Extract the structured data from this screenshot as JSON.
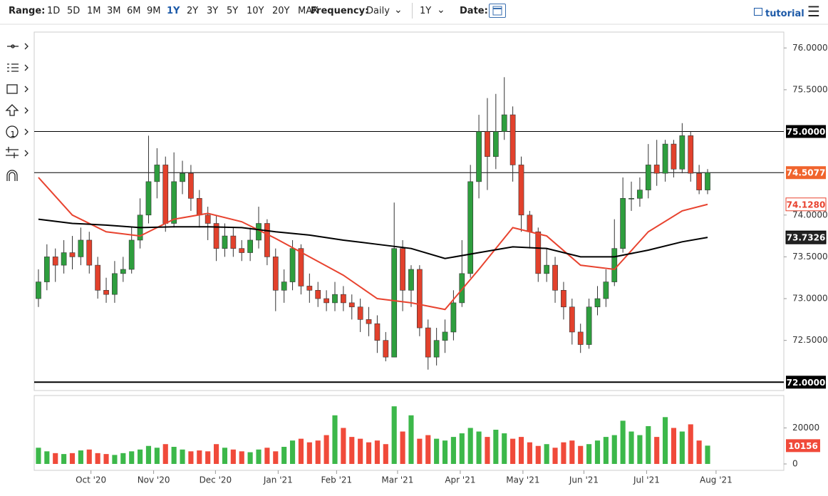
{
  "toolbar": {
    "range_label": "Range:",
    "ranges": [
      "1D",
      "5D",
      "1M",
      "3M",
      "6M",
      "9M",
      "1Y",
      "2Y",
      "3Y",
      "5Y",
      "10Y",
      "20Y",
      "MAX"
    ],
    "active_range": 6,
    "frequency_label": "Frequency:",
    "frequency": "Daily",
    "period": "1Y",
    "date_label": "Date:",
    "tutorial": "tutorial"
  },
  "chart_data": {
    "type": "candlestick",
    "xlim": [
      -0.5,
      88
    ],
    "xticks": [
      {
        "value": 6.2,
        "label": "Oct '20"
      },
      {
        "value": 13.6,
        "label": "Nov '20"
      },
      {
        "value": 20.9,
        "label": "Dec '20"
      },
      {
        "value": 28.3,
        "label": "Jan '21"
      },
      {
        "value": 35.2,
        "label": "Feb '21"
      },
      {
        "value": 42.4,
        "label": "Mar '21"
      },
      {
        "value": 49.8,
        "label": "Apr '21"
      },
      {
        "value": 57.2,
        "label": "May '21"
      },
      {
        "value": 64.4,
        "label": "Jun '21"
      },
      {
        "value": 71.8,
        "label": "Jul '21"
      },
      {
        "value": 80.0,
        "label": "Aug '21"
      }
    ],
    "ylim": [
      71.9,
      76.19
    ],
    "yticks": [
      {
        "value": 72.5,
        "label": "72.5000"
      },
      {
        "value": 73,
        "label": "73.0000"
      },
      {
        "value": 73.5,
        "label": "73.5000"
      },
      {
        "value": 74,
        "label": "74.0000"
      },
      {
        "value": 75.5,
        "label": "75.5000"
      },
      {
        "value": 76,
        "label": "76.0000"
      }
    ],
    "up_color": "#2e9e3e",
    "down_color": "#e2412c",
    "open": [
      73.0,
      73.2,
      73.5,
      73.4,
      73.55,
      73.5,
      73.7,
      73.4,
      73.1,
      73.05,
      73.3,
      73.35,
      73.7,
      74.0,
      74.4,
      74.6,
      73.9,
      74.4,
      74.5,
      74.2,
      74.0,
      73.9,
      73.6,
      73.75,
      73.6,
      73.55,
      73.7,
      73.9,
      73.5,
      73.1,
      73.2,
      73.6,
      73.15,
      73.1,
      73.0,
      72.95,
      73.05,
      72.95,
      72.9,
      72.75,
      72.7,
      72.5,
      72.3,
      73.6,
      73.1,
      73.35,
      72.65,
      72.3,
      72.5,
      72.6,
      72.95,
      73.3,
      74.4,
      75.0,
      74.7,
      75.0,
      75.2,
      74.6,
      74.0,
      73.8,
      73.3,
      73.4,
      73.1,
      72.9,
      72.6,
      72.45,
      72.9,
      73.0,
      73.2,
      73.6,
      74.2,
      74.2,
      74.3,
      74.6,
      74.5,
      74.85,
      74.55,
      74.95,
      74.5,
      74.3
    ],
    "high": [
      73.35,
      73.65,
      73.6,
      73.7,
      73.75,
      73.85,
      73.8,
      73.5,
      73.25,
      73.45,
      73.5,
      73.85,
      74.2,
      74.95,
      74.8,
      74.7,
      74.75,
      74.65,
      74.6,
      74.3,
      74.1,
      74.0,
      73.9,
      73.85,
      73.7,
      73.85,
      74.1,
      73.95,
      73.6,
      73.35,
      73.7,
      73.65,
      73.3,
      73.2,
      73.1,
      73.2,
      73.15,
      73.05,
      73.0,
      72.9,
      72.8,
      72.6,
      74.15,
      73.7,
      73.4,
      73.4,
      72.75,
      72.65,
      72.75,
      73.1,
      73.7,
      74.6,
      75.2,
      75.4,
      75.45,
      75.65,
      75.3,
      74.7,
      74.05,
      73.85,
      73.6,
      73.5,
      73.2,
      73.0,
      72.7,
      73.0,
      73.15,
      73.35,
      73.95,
      74.45,
      74.4,
      74.45,
      74.85,
      74.9,
      74.9,
      74.9,
      75.1,
      75.0,
      74.6,
      74.55
    ],
    "low": [
      72.9,
      73.1,
      73.2,
      73.3,
      73.35,
      73.4,
      73.3,
      73.0,
      72.95,
      72.95,
      73.2,
      73.3,
      73.6,
      73.9,
      74.2,
      73.8,
      73.85,
      74.25,
      74.05,
      73.85,
      73.7,
      73.45,
      73.5,
      73.5,
      73.45,
      73.45,
      73.6,
      73.4,
      72.85,
      72.95,
      73.1,
      73.05,
      72.95,
      72.9,
      72.85,
      72.85,
      72.85,
      72.75,
      72.6,
      72.55,
      72.35,
      72.25,
      72.3,
      72.85,
      72.9,
      72.55,
      72.15,
      72.2,
      72.35,
      72.5,
      72.9,
      73.25,
      74.2,
      74.3,
      74.55,
      74.9,
      74.4,
      73.8,
      73.6,
      73.2,
      73.2,
      72.95,
      72.75,
      72.45,
      72.35,
      72.4,
      72.8,
      72.9,
      73.15,
      73.55,
      74.05,
      74.1,
      74.2,
      74.35,
      74.4,
      74.45,
      74.5,
      74.4,
      74.25,
      74.25
    ],
    "close": [
      73.2,
      73.5,
      73.4,
      73.55,
      73.5,
      73.7,
      73.4,
      73.1,
      73.05,
      73.3,
      73.35,
      73.7,
      74.0,
      74.4,
      74.6,
      73.9,
      74.4,
      74.5,
      74.2,
      74.0,
      73.9,
      73.6,
      73.75,
      73.6,
      73.55,
      73.7,
      73.9,
      73.5,
      73.1,
      73.2,
      73.6,
      73.15,
      73.1,
      73.0,
      72.95,
      73.05,
      72.95,
      72.9,
      72.75,
      72.7,
      72.5,
      72.3,
      73.6,
      73.1,
      73.35,
      72.65,
      72.3,
      72.5,
      72.6,
      72.95,
      73.3,
      74.4,
      75.0,
      74.7,
      75.0,
      75.2,
      74.6,
      74.0,
      73.8,
      73.3,
      73.4,
      73.1,
      72.9,
      72.6,
      72.45,
      72.9,
      73.0,
      73.2,
      73.6,
      74.2,
      74.2,
      74.3,
      74.6,
      74.5,
      74.85,
      74.55,
      74.95,
      74.5,
      74.3,
      74.5077
    ],
    "moving_averages": [
      {
        "color": "#e8432f",
        "x": [
          0,
          4,
          8,
          12,
          16,
          20,
          24,
          28,
          32,
          36,
          40,
          44,
          48,
          52,
          56,
          60,
          64,
          68,
          72,
          76,
          79
        ],
        "values": [
          74.45,
          74.0,
          73.8,
          73.75,
          73.95,
          74.02,
          73.92,
          73.72,
          73.5,
          73.28,
          73.0,
          72.95,
          72.87,
          73.35,
          73.85,
          73.75,
          73.4,
          73.35,
          73.8,
          74.05,
          74.128
        ],
        "last_label": "74.1280"
      },
      {
        "color": "#000000",
        "x": [
          0,
          4,
          8,
          12,
          16,
          20,
          24,
          28,
          32,
          36,
          40,
          44,
          48,
          52,
          56,
          60,
          64,
          68,
          72,
          76,
          79
        ],
        "values": [
          73.95,
          73.9,
          73.88,
          73.85,
          73.86,
          73.86,
          73.85,
          73.8,
          73.76,
          73.7,
          73.65,
          73.6,
          73.48,
          73.55,
          73.62,
          73.6,
          73.5,
          73.5,
          73.58,
          73.68,
          73.7326
        ],
        "last_label": "73.7326"
      }
    ],
    "levels": [
      {
        "value": 75,
        "label": "75.0000",
        "color": "#000000"
      },
      {
        "value": 74.5077,
        "label": "74.5077",
        "color": "#f0642d"
      },
      {
        "value": 72,
        "label": "72.0000",
        "color": "#000000"
      }
    ],
    "volume": [
      9000,
      7000,
      6000,
      5500,
      6000,
      7500,
      8000,
      6000,
      5500,
      5000,
      6000,
      7000,
      8000,
      10000,
      9000,
      11000,
      9500,
      8000,
      7000,
      7500,
      7000,
      11000,
      9000,
      8000,
      7000,
      6500,
      8000,
      9000,
      7000,
      9500,
      13000,
      14000,
      12000,
      13000,
      16000,
      27000,
      20000,
      15000,
      14000,
      12000,
      13000,
      11000,
      32000,
      18000,
      27000,
      14000,
      16000,
      14000,
      13000,
      15000,
      17000,
      20000,
      18000,
      15000,
      19000,
      17000,
      14000,
      15000,
      12000,
      10000,
      11000,
      9000,
      12000,
      13000,
      10000,
      11000,
      13000,
      15000,
      16000,
      24000,
      18000,
      16000,
      21000,
      15000,
      26000,
      20000,
      18000,
      22000,
      13000,
      10156
    ],
    "volume_ylim": [
      0,
      38000
    ],
    "volume_yticks": [
      0,
      20000
    ],
    "volume_up_color": "#3cb84a",
    "volume_down_color": "#f04a3a"
  }
}
